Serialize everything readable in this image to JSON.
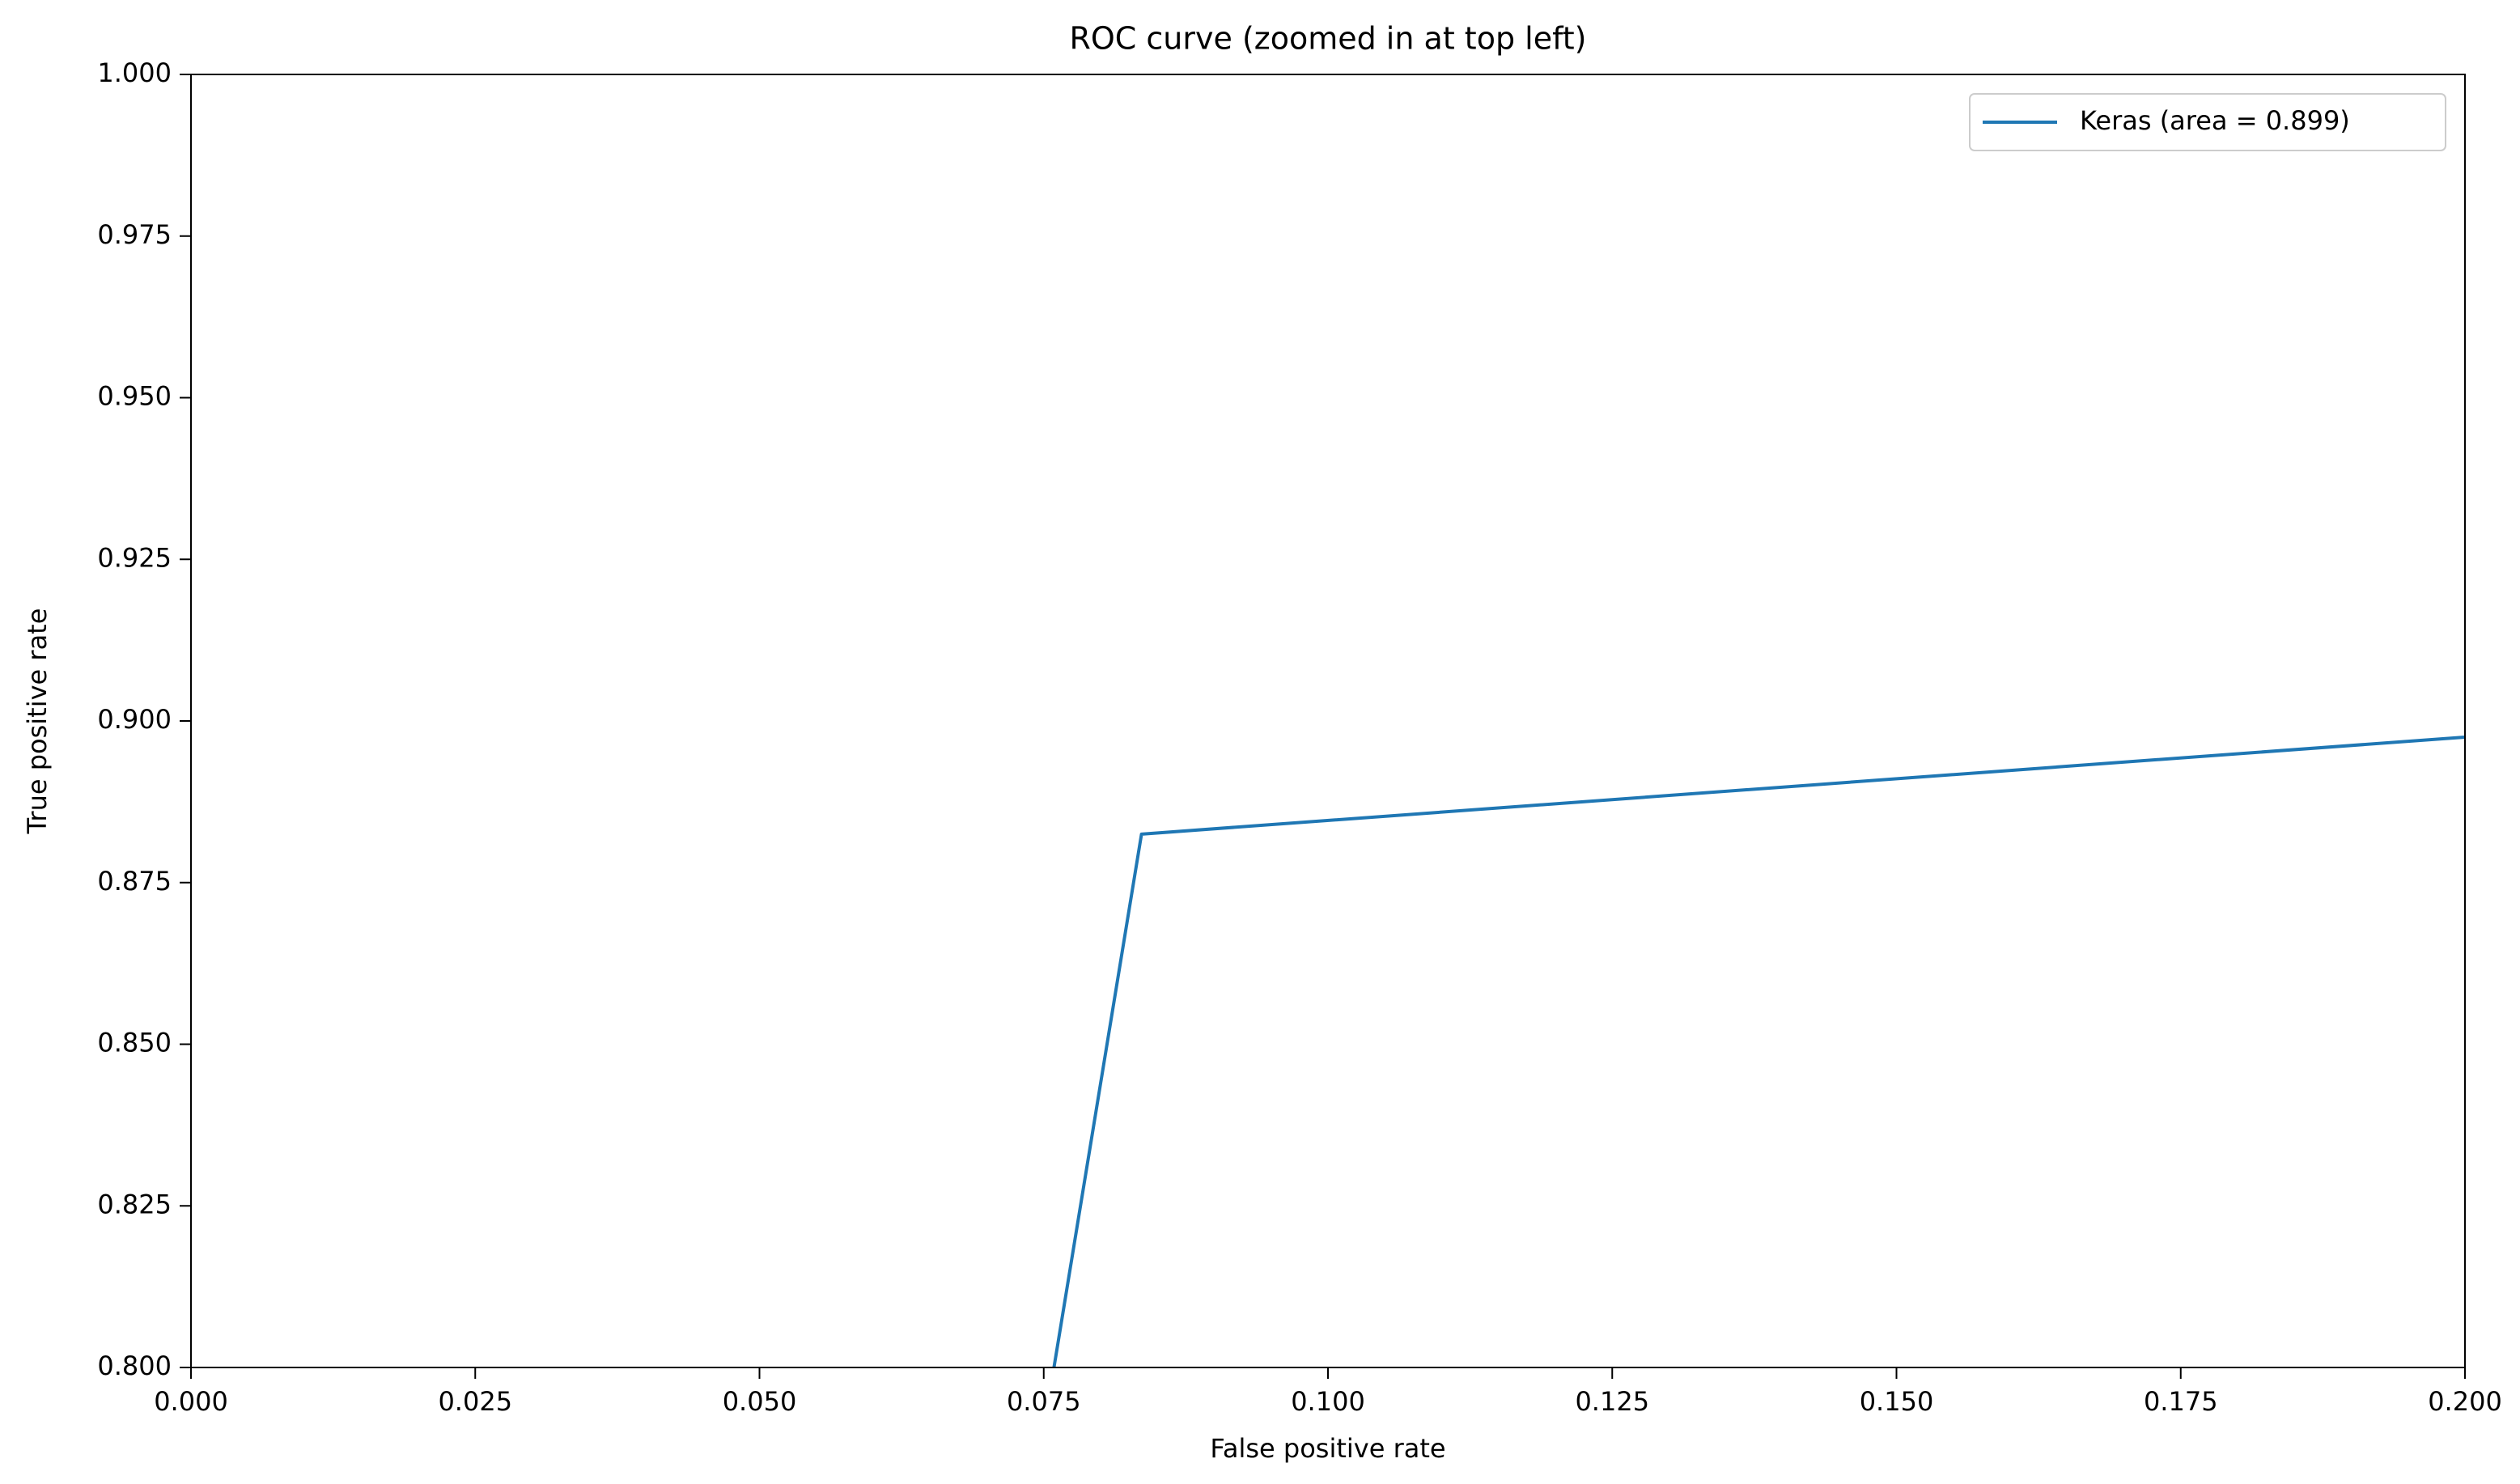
{
  "chart_data": {
    "type": "line",
    "title": "ROC curve (zoomed in at top left)",
    "x_label": "False positive rate",
    "y_label": "True positive rate",
    "x": [
      0.0759,
      0.0836,
      0.2
    ],
    "series": [
      {
        "name": "Keras (area = 0.899)",
        "color": "#1f77b4",
        "values": [
          0.8,
          0.8825,
          0.8975
        ]
      }
    ],
    "xlim": [
      0,
      0.2
    ],
    "ylim": [
      0.8,
      1.0
    ],
    "xticks": [
      {
        "value": 0,
        "label": "0.000"
      },
      {
        "value": 0.025,
        "label": "0.025"
      },
      {
        "value": 0.05,
        "label": "0.050"
      },
      {
        "value": 0.075,
        "label": "0.075"
      },
      {
        "value": 0.1,
        "label": "0.100"
      },
      {
        "value": 0.125,
        "label": "0.125"
      },
      {
        "value": 0.15,
        "label": "0.150"
      },
      {
        "value": 0.175,
        "label": "0.175"
      },
      {
        "value": 0.2,
        "label": "0.200"
      }
    ],
    "yticks": [
      {
        "value": 0.8,
        "label": "0.800"
      },
      {
        "value": 0.825,
        "label": "0.825"
      },
      {
        "value": 0.85,
        "label": "0.850"
      },
      {
        "value": 0.875,
        "label": "0.875"
      },
      {
        "value": 0.9,
        "label": "0.900"
      },
      {
        "value": 0.925,
        "label": "0.925"
      },
      {
        "value": 0.95,
        "label": "0.950"
      },
      {
        "value": 0.975,
        "label": "0.975"
      },
      {
        "value": 1.0,
        "label": "1.000"
      }
    ],
    "grid": false,
    "legend_position": "upper-right"
  }
}
